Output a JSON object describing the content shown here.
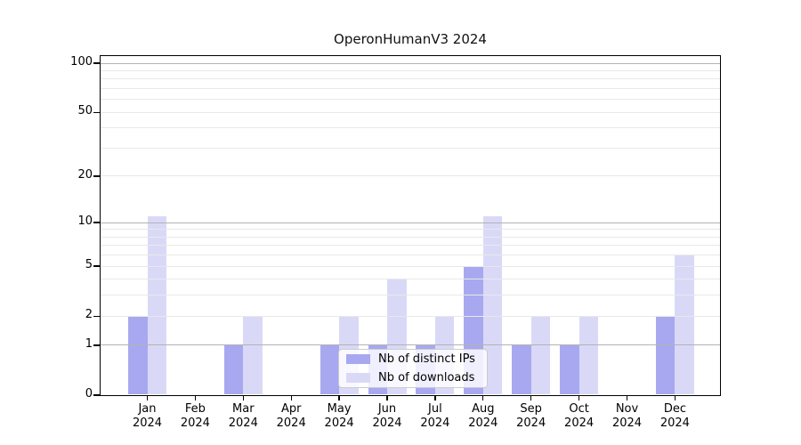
{
  "chart_data": {
    "type": "bar",
    "title": "OperonHumanV3 2024",
    "x_axis": {
      "months": [
        "Jan",
        "Feb",
        "Mar",
        "Apr",
        "May",
        "Jun",
        "Jul",
        "Aug",
        "Sep",
        "Oct",
        "Nov",
        "Dec"
      ],
      "year": "2024",
      "categories": [
        "Jan 2024",
        "Feb 2024",
        "Mar 2024",
        "Apr 2024",
        "May 2024",
        "Jun 2024",
        "Jul 2024",
        "Aug 2024",
        "Sep 2024",
        "Oct 2024",
        "Nov 2024",
        "Dec 2024"
      ]
    },
    "y_axis": {
      "scale": "log10(1+x)",
      "range": [
        0,
        100
      ],
      "ticks": [
        0,
        1,
        2,
        5,
        10,
        20,
        50,
        100
      ],
      "major_gridlines": [
        1,
        10,
        100
      ],
      "minor_gridlines": [
        2,
        3,
        4,
        5,
        6,
        7,
        8,
        9,
        20,
        30,
        40,
        50,
        60,
        70,
        80,
        90
      ]
    },
    "series": [
      {
        "name": "Nb of distinct IPs",
        "color": "#a8a8f0",
        "values": [
          2,
          0,
          1,
          0,
          1,
          1,
          1,
          5,
          1,
          1,
          0,
          2
        ]
      },
      {
        "name": "Nb of downloads",
        "color": "#d9d9f7",
        "values": [
          11,
          0,
          2,
          0,
          2,
          4,
          2,
          11,
          2,
          2,
          0,
          6
        ]
      }
    ],
    "legend_position": "lower center"
  },
  "colors": {
    "grid_major": "#b3b3b3",
    "grid_minor": "#e8e8e8",
    "axis": "#000000",
    "text": "#000000",
    "legend_border": "#cccccc",
    "background": "#ffffff"
  }
}
